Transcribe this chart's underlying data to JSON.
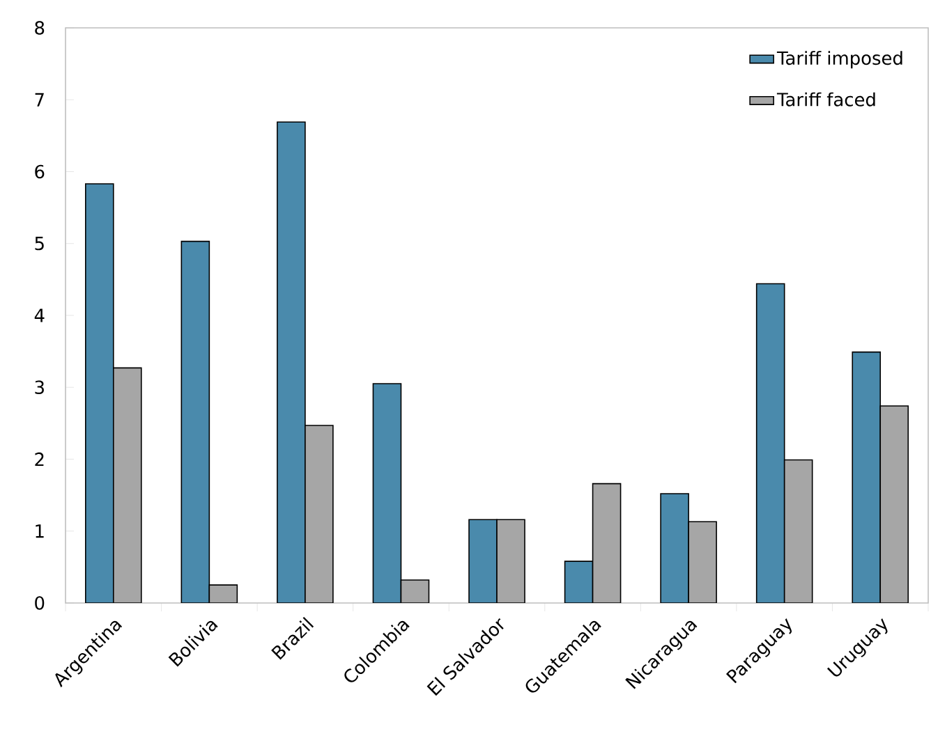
{
  "chart_data": {
    "type": "bar",
    "categories": [
      "Argentina",
      "Bolivia",
      "Brazil",
      "Colombia",
      "El Salvador",
      "Guatemala",
      "Nicaragua",
      "Paraguay",
      "Uruguay"
    ],
    "series": [
      {
        "name": "Tariff imposed",
        "color": "#4a8aac",
        "values": [
          5.83,
          5.03,
          6.69,
          3.05,
          1.16,
          0.58,
          1.52,
          4.44,
          3.49
        ]
      },
      {
        "name": "Tariff faced",
        "color": "#a6a6a6",
        "values": [
          3.27,
          0.25,
          2.47,
          0.32,
          1.16,
          1.66,
          1.13,
          1.99,
          2.74
        ]
      }
    ],
    "ylim": [
      0,
      8
    ],
    "yticks": [
      0,
      1,
      2,
      3,
      4,
      5,
      6,
      7,
      8
    ],
    "legend": "top right",
    "grid": false
  }
}
